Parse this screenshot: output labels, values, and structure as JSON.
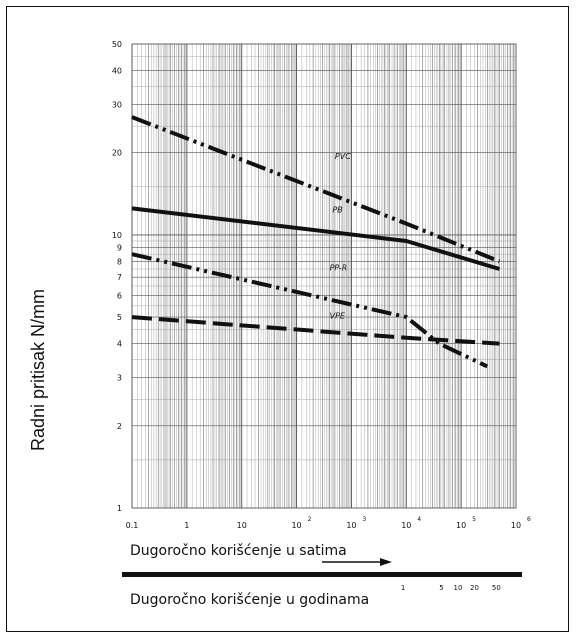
{
  "chart_data": {
    "type": "line",
    "ylabel": "Radni pritisak N/mm",
    "xlabel": "Dugoročno korišćenje u satima",
    "x2label": "Dugoročno korišćenje u godinama",
    "x_scale": "log",
    "y_scale": "log",
    "xlim": [
      0.1,
      1000000
    ],
    "ylim": [
      1,
      50
    ],
    "grid": true,
    "y_ticks": [
      {
        "value": 1,
        "label": "1"
      },
      {
        "value": 2,
        "label": "2"
      },
      {
        "value": 3,
        "label": "3"
      },
      {
        "value": 4,
        "label": "4"
      },
      {
        "value": 5,
        "label": "5"
      },
      {
        "value": 6,
        "label": "6"
      },
      {
        "value": 7,
        "label": "7"
      },
      {
        "value": 8,
        "label": "8"
      },
      {
        "value": 9,
        "label": "9"
      },
      {
        "value": 10,
        "label": "10"
      },
      {
        "value": 20,
        "label": "20"
      },
      {
        "value": 30,
        "label": "30"
      },
      {
        "value": 40,
        "label": "40"
      },
      {
        "value": 50,
        "label": "50"
      }
    ],
    "x_ticks": [
      {
        "value": 0.1,
        "base": "0.1",
        "exp": ""
      },
      {
        "value": 1,
        "base": "1",
        "exp": ""
      },
      {
        "value": 10,
        "base": "10",
        "exp": ""
      },
      {
        "value": 100,
        "base": "10",
        "exp": "2"
      },
      {
        "value": 1000,
        "base": "10",
        "exp": "3"
      },
      {
        "value": 10000,
        "base": "10",
        "exp": "4"
      },
      {
        "value": 100000,
        "base": "10",
        "exp": "5"
      },
      {
        "value": 1000000,
        "base": "10",
        "exp": "6"
      }
    ],
    "year_ticks": [
      {
        "hours": 8760,
        "label": "1"
      },
      {
        "hours": 43800,
        "label": "5"
      },
      {
        "hours": 87600,
        "label": "10"
      },
      {
        "hours": 175200,
        "label": "20"
      },
      {
        "hours": 438000,
        "label": "50"
      }
    ],
    "series": [
      {
        "name": "PVC",
        "style": "dash-dot-dot",
        "points": [
          [
            0.1,
            27
          ],
          [
            10000,
            11
          ],
          [
            500000,
            8
          ]
        ]
      },
      {
        "name": "PB",
        "style": "solid",
        "points": [
          [
            0.1,
            12.5
          ],
          [
            10000,
            9.5
          ],
          [
            500000,
            7.5
          ]
        ]
      },
      {
        "name": "PP-R",
        "style": "dash-dot-dot",
        "points": [
          [
            0.1,
            8.5
          ],
          [
            10000,
            5
          ],
          [
            40000,
            4
          ],
          [
            300000,
            3.3
          ]
        ]
      },
      {
        "name": "VPE",
        "style": "dashed",
        "points": [
          [
            0.1,
            5
          ],
          [
            10000,
            4.2
          ],
          [
            500000,
            4
          ]
        ]
      }
    ],
    "series_labels": [
      {
        "name": "PVC",
        "x": 500,
        "y": 19
      },
      {
        "name": "PB",
        "x": 450,
        "y": 12.1
      },
      {
        "name": "PP-R",
        "x": 400,
        "y": 7.4
      },
      {
        "name": "VPE",
        "x": 400,
        "y": 4.95
      }
    ]
  }
}
